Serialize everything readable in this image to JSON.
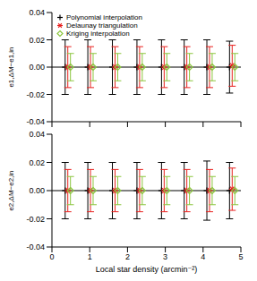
{
  "chart_data": [
    {
      "type": "scatter",
      "y_label": "e1,ΔM−e1,in",
      "legend": "upper left",
      "tick_labels": "y",
      "xlim": [
        0,
        5
      ],
      "xticks": [
        0,
        1,
        2,
        3,
        4,
        5
      ],
      "ylim": [
        -0.04,
        0.04
      ],
      "yticks": [
        -0.04,
        -0.02,
        {
          "value": 0,
          "label": "0.00"
        },
        0.02,
        0.04
      ],
      "hline": 0,
      "series": [
        {
          "name": "Polynomial interpolation",
          "color": "#000000",
          "marker": "plus",
          "x": [
            0.35,
            0.95,
            1.6,
            2.25,
            2.9,
            3.5,
            4.1,
            4.7
          ],
          "values": [
            0,
            0,
            0,
            0,
            0,
            0,
            0,
            0
          ],
          "errors": [
            0.02,
            0.02,
            0.02,
            0.02,
            0.02,
            0.02,
            0.02,
            0.019
          ]
        },
        {
          "name": "Delaunay triangulation",
          "color": "#e8201e",
          "marker": "star",
          "x": [
            0.42,
            1.02,
            1.67,
            2.32,
            2.97,
            3.57,
            4.17,
            4.77
          ],
          "values": [
            0,
            0,
            0,
            0,
            0,
            0,
            0,
            0.001
          ],
          "errors": [
            0.015,
            0.015,
            0.015,
            0.015,
            0.015,
            0.015,
            0.015,
            0.015
          ]
        },
        {
          "name": "Kriging interpolation",
          "color": "#8cc63f",
          "marker": "diamond",
          "x": [
            0.49,
            1.09,
            1.74,
            2.39,
            3.04,
            3.64,
            4.24,
            4.84
          ],
          "values": [
            0,
            0,
            0,
            0,
            0,
            0,
            0,
            0
          ],
          "errors": [
            0.01,
            0.01,
            0.01,
            0.01,
            0.01,
            0.01,
            0.01,
            0.01
          ]
        }
      ]
    },
    {
      "type": "scatter",
      "y_label": "e2,ΔM−e2,in",
      "x_label": "Local star density (arcmin⁻²)",
      "xlim": [
        0,
        5
      ],
      "xticks": [
        0,
        1,
        2,
        3,
        4,
        5
      ],
      "ylim": [
        -0.04,
        0.04
      ],
      "yticks": [
        -0.04,
        -0.02,
        {
          "value": 0,
          "label": "0.00"
        },
        0.02,
        0.04
      ],
      "hline": 0,
      "series": [
        {
          "name": "Polynomial interpolation",
          "color": "#000000",
          "marker": "plus",
          "x": [
            0.35,
            0.95,
            1.6,
            2.25,
            2.9,
            3.5,
            4.1,
            4.7
          ],
          "values": [
            0,
            0,
            0,
            0,
            0,
            0,
            0,
            0
          ],
          "errors": [
            0.02,
            0.02,
            0.02,
            0.02,
            0.02,
            0.02,
            0.021,
            0.02
          ]
        },
        {
          "name": "Delaunay triangulation",
          "color": "#e8201e",
          "marker": "star",
          "x": [
            0.42,
            1.02,
            1.67,
            2.32,
            2.97,
            3.57,
            4.17,
            4.77
          ],
          "values": [
            0,
            0,
            0,
            0,
            0,
            0,
            0,
            0.001
          ],
          "errors": [
            0.015,
            0.015,
            0.015,
            0.015,
            0.015,
            0.015,
            0.015,
            0.015
          ]
        },
        {
          "name": "Kriging interpolation",
          "color": "#8cc63f",
          "marker": "diamond",
          "x": [
            0.49,
            1.09,
            1.74,
            2.39,
            3.04,
            3.64,
            4.24,
            4.84
          ],
          "values": [
            0,
            0,
            0,
            0,
            0,
            0,
            0,
            0
          ],
          "errors": [
            0.01,
            0.01,
            0.01,
            0.01,
            0.01,
            0.01,
            0.01,
            0.01
          ]
        }
      ]
    }
  ]
}
